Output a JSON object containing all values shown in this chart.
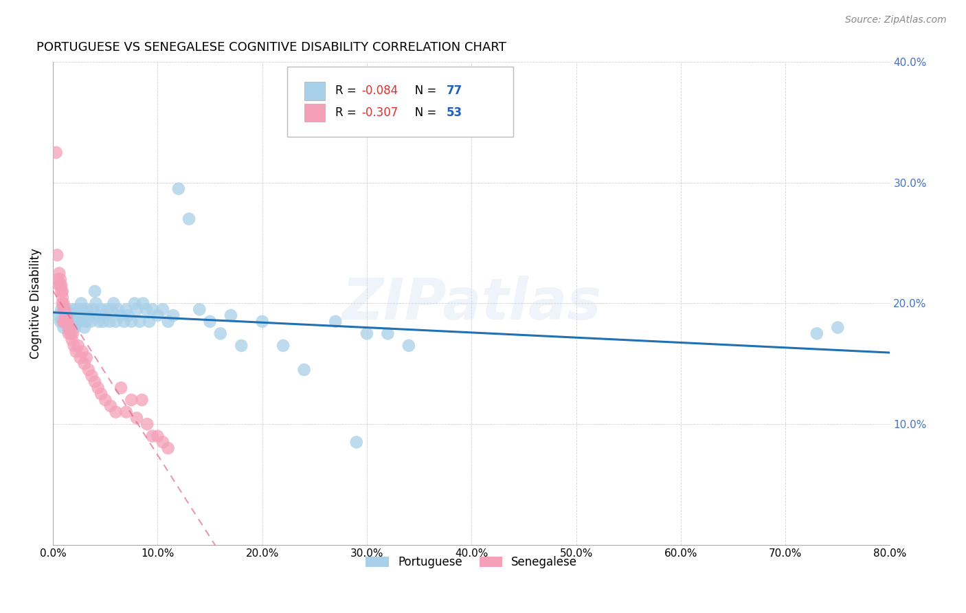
{
  "title": "PORTUGUESE VS SENEGALESE COGNITIVE DISABILITY CORRELATION CHART",
  "source": "Source: ZipAtlas.com",
  "ylabel": "Cognitive Disability",
  "xlim": [
    0.0,
    0.8
  ],
  "ylim": [
    0.0,
    0.4
  ],
  "xticks": [
    0.0,
    0.1,
    0.2,
    0.3,
    0.4,
    0.5,
    0.6,
    0.7,
    0.8
  ],
  "yticks": [
    0.0,
    0.1,
    0.2,
    0.3,
    0.4
  ],
  "portuguese_color": "#A8D0E8",
  "senegalese_color": "#F4A0B8",
  "trendline_portuguese_color": "#2070B4",
  "trendline_senegalese_color": "#E06080",
  "watermark": "ZIPatlas",
  "legend_r_portuguese": "-0.084",
  "legend_n_portuguese": "77",
  "legend_r_senegalese": "-0.307",
  "legend_n_senegalese": "53",
  "portuguese_x": [
    0.005,
    0.007,
    0.008,
    0.009,
    0.01,
    0.01,
    0.011,
    0.012,
    0.013,
    0.014,
    0.015,
    0.015,
    0.016,
    0.017,
    0.018,
    0.019,
    0.02,
    0.021,
    0.022,
    0.023,
    0.025,
    0.025,
    0.027,
    0.028,
    0.03,
    0.03,
    0.032,
    0.033,
    0.035,
    0.036,
    0.038,
    0.04,
    0.041,
    0.043,
    0.044,
    0.046,
    0.048,
    0.05,
    0.052,
    0.054,
    0.056,
    0.058,
    0.06,
    0.062,
    0.065,
    0.068,
    0.07,
    0.072,
    0.075,
    0.078,
    0.08,
    0.083,
    0.086,
    0.089,
    0.092,
    0.095,
    0.1,
    0.105,
    0.11,
    0.115,
    0.12,
    0.13,
    0.14,
    0.15,
    0.16,
    0.17,
    0.18,
    0.2,
    0.22,
    0.24,
    0.27,
    0.29,
    0.3,
    0.32,
    0.34,
    0.73,
    0.75
  ],
  "portuguese_y": [
    0.19,
    0.185,
    0.195,
    0.185,
    0.19,
    0.18,
    0.185,
    0.185,
    0.195,
    0.18,
    0.19,
    0.185,
    0.18,
    0.185,
    0.195,
    0.185,
    0.19,
    0.18,
    0.195,
    0.185,
    0.195,
    0.185,
    0.2,
    0.195,
    0.19,
    0.18,
    0.185,
    0.195,
    0.19,
    0.185,
    0.195,
    0.21,
    0.2,
    0.19,
    0.185,
    0.195,
    0.185,
    0.19,
    0.195,
    0.185,
    0.195,
    0.2,
    0.185,
    0.195,
    0.19,
    0.185,
    0.195,
    0.19,
    0.185,
    0.2,
    0.195,
    0.185,
    0.2,
    0.195,
    0.185,
    0.195,
    0.19,
    0.195,
    0.185,
    0.19,
    0.295,
    0.27,
    0.195,
    0.185,
    0.175,
    0.19,
    0.165,
    0.185,
    0.165,
    0.145,
    0.185,
    0.085,
    0.175,
    0.175,
    0.165,
    0.175,
    0.18
  ],
  "senegalese_x": [
    0.003,
    0.004,
    0.005,
    0.006,
    0.006,
    0.007,
    0.007,
    0.008,
    0.008,
    0.009,
    0.009,
    0.009,
    0.01,
    0.01,
    0.01,
    0.011,
    0.011,
    0.012,
    0.012,
    0.013,
    0.013,
    0.014,
    0.015,
    0.015,
    0.016,
    0.017,
    0.018,
    0.019,
    0.02,
    0.022,
    0.024,
    0.026,
    0.028,
    0.03,
    0.032,
    0.034,
    0.037,
    0.04,
    0.043,
    0.046,
    0.05,
    0.055,
    0.06,
    0.065,
    0.07,
    0.075,
    0.08,
    0.085,
    0.09,
    0.095,
    0.1,
    0.105,
    0.11
  ],
  "senegalese_y": [
    0.325,
    0.24,
    0.22,
    0.225,
    0.215,
    0.22,
    0.215,
    0.215,
    0.21,
    0.21,
    0.205,
    0.2,
    0.2,
    0.195,
    0.185,
    0.195,
    0.185,
    0.19,
    0.185,
    0.19,
    0.185,
    0.185,
    0.18,
    0.175,
    0.18,
    0.175,
    0.17,
    0.175,
    0.165,
    0.16,
    0.165,
    0.155,
    0.16,
    0.15,
    0.155,
    0.145,
    0.14,
    0.135,
    0.13,
    0.125,
    0.12,
    0.115,
    0.11,
    0.13,
    0.11,
    0.12,
    0.105,
    0.12,
    0.1,
    0.09,
    0.09,
    0.085,
    0.08
  ]
}
